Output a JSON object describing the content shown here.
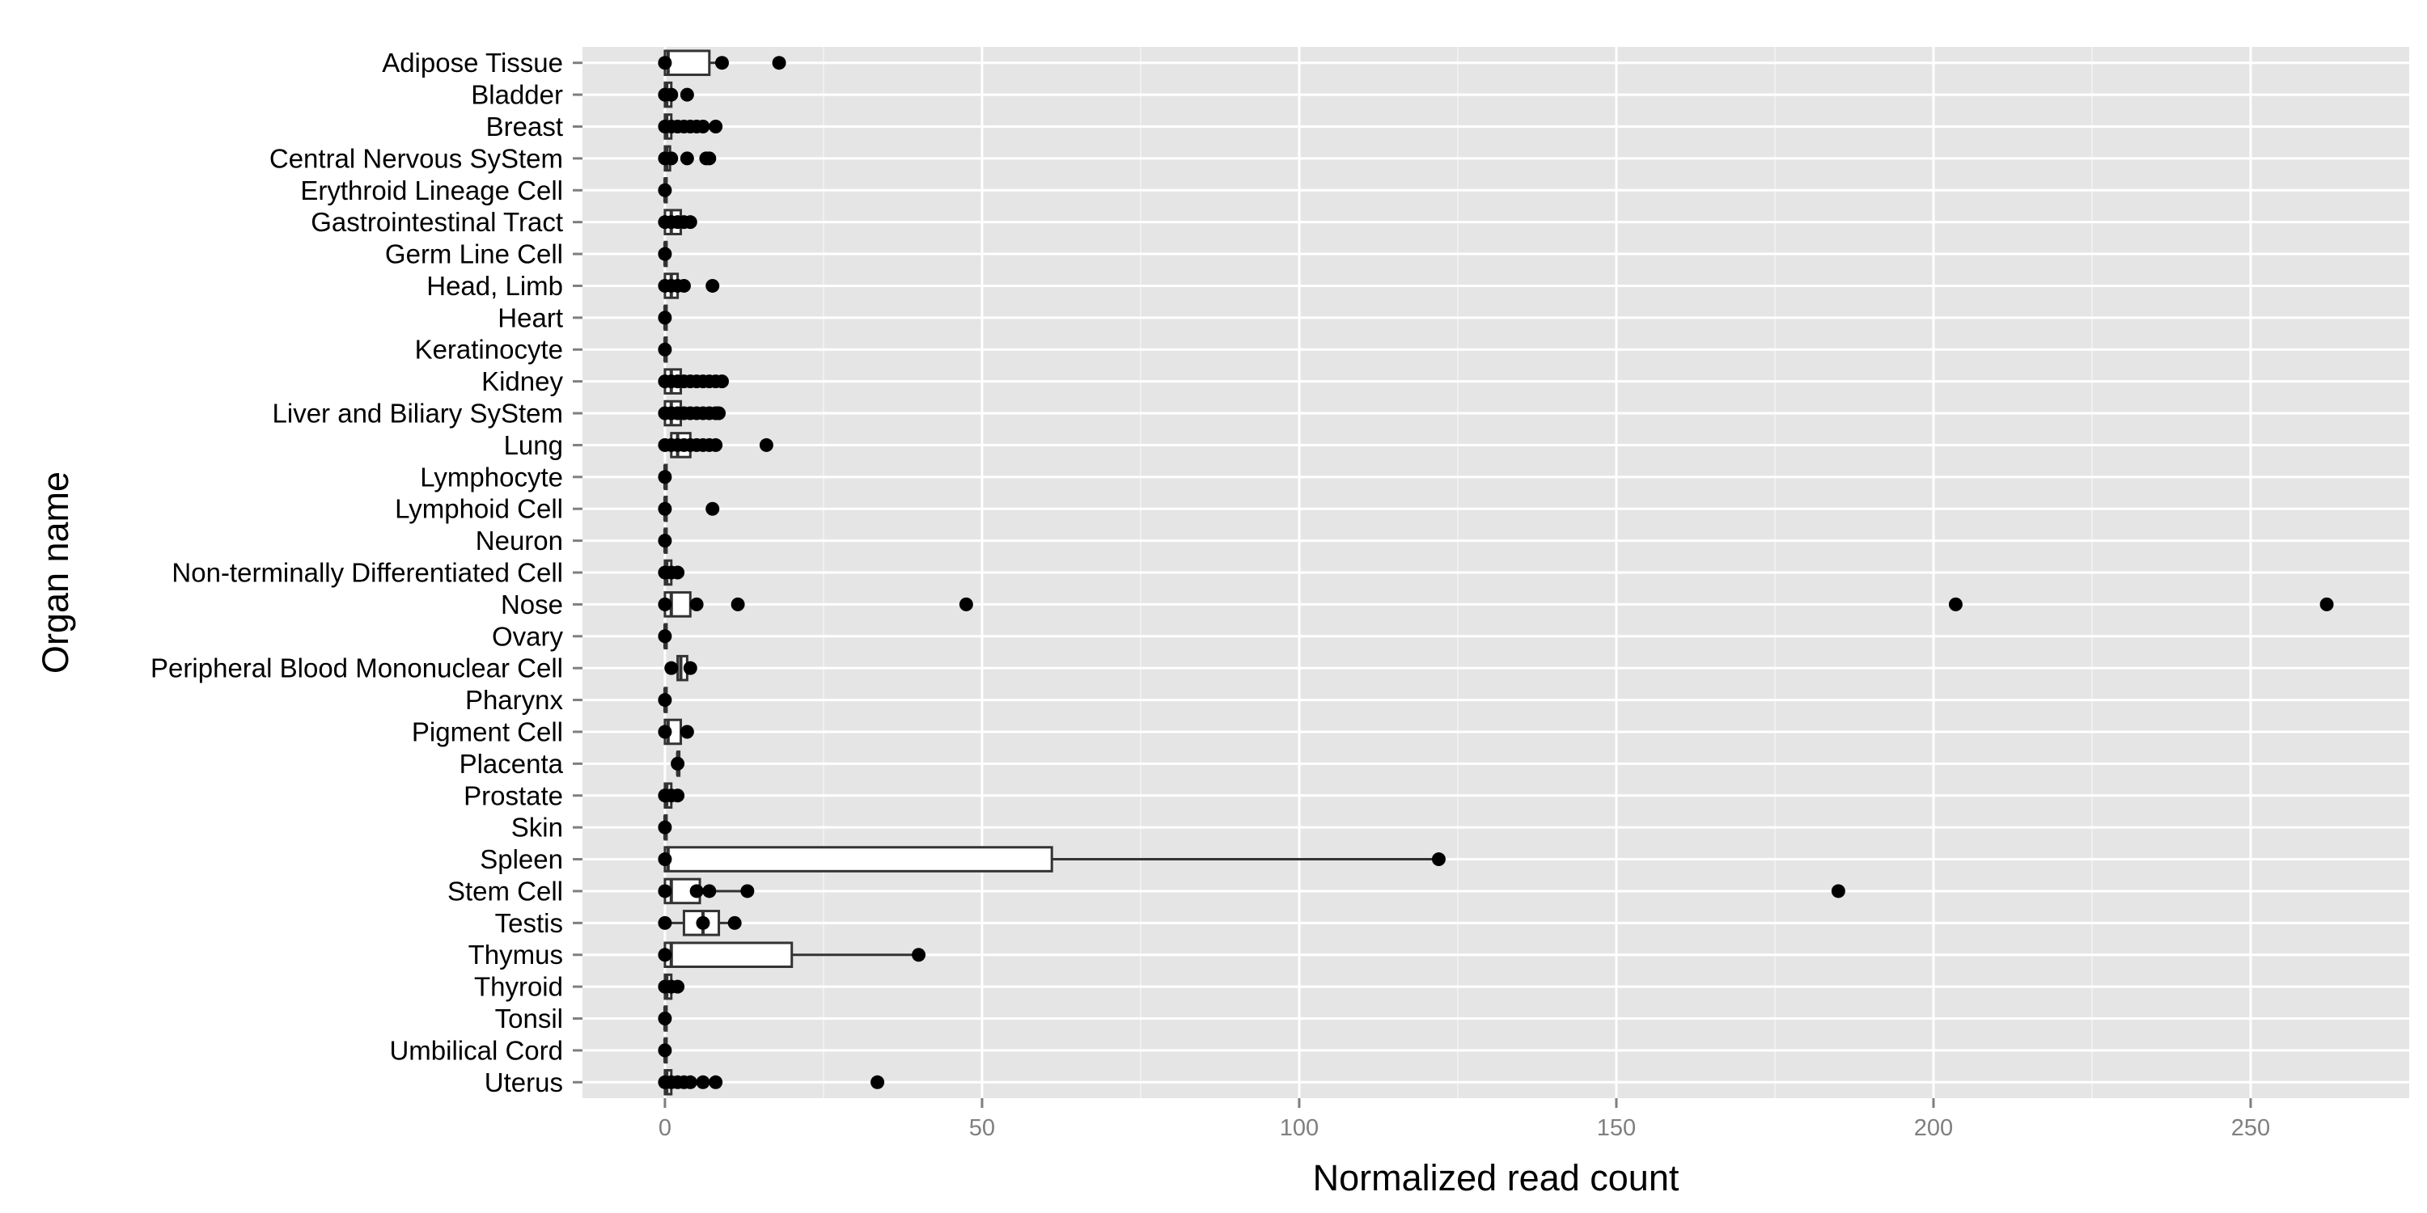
{
  "chart_data": {
    "type": "boxplot",
    "orientation": "horizontal",
    "xlabel": "Normalized read count",
    "ylabel": "Organ name",
    "xlim": [
      -13,
      275
    ],
    "xticks": [
      0,
      50,
      100,
      150,
      200,
      250
    ],
    "grid": true,
    "legend": "none",
    "colors": {
      "panel": "#e5e5e5",
      "grid": "#ffffff",
      "box_fill": "#ffffff",
      "stroke": "#333333",
      "point": "#000000",
      "tick_text": "#7f7f7f"
    },
    "categories": [
      {
        "name": "Adipose Tissue",
        "box": [
          0,
          0,
          0.5,
          7,
          9
        ],
        "outliers": [
          0,
          9,
          18
        ]
      },
      {
        "name": "Bladder",
        "box": [
          0,
          0,
          0.3,
          1,
          1.5
        ],
        "outliers": [
          0,
          1,
          3.5
        ]
      },
      {
        "name": "Breast",
        "box": [
          0,
          0,
          0.3,
          1,
          2
        ],
        "outliers": [
          0,
          1,
          2,
          3,
          4,
          5,
          6,
          8
        ]
      },
      {
        "name": "Central Nervous SyStem",
        "box": [
          0,
          0,
          0.3,
          0.8,
          1.5
        ],
        "outliers": [
          0,
          1,
          3.5,
          6.5,
          7
        ]
      },
      {
        "name": "Erythroid Lineage Cell",
        "box": [
          0,
          0,
          0,
          0,
          0
        ],
        "outliers": [
          0
        ]
      },
      {
        "name": "Gastrointestinal Tract",
        "box": [
          0,
          0,
          1,
          2.5,
          4
        ],
        "outliers": [
          0,
          1,
          2,
          3,
          4
        ]
      },
      {
        "name": "Germ Line Cell",
        "box": [
          0,
          0,
          0,
          0,
          0
        ],
        "outliers": [
          0
        ]
      },
      {
        "name": "Head, Limb",
        "box": [
          0,
          0,
          1,
          2,
          3
        ],
        "outliers": [
          0,
          1,
          2,
          3,
          7.5
        ]
      },
      {
        "name": "Heart",
        "box": [
          0,
          0,
          0,
          0,
          0
        ],
        "outliers": [
          0
        ]
      },
      {
        "name": "Keratinocyte",
        "box": [
          0,
          0,
          0,
          0,
          0
        ],
        "outliers": [
          0
        ]
      },
      {
        "name": "Kidney",
        "box": [
          0,
          0,
          1,
          2.5,
          3.5
        ],
        "outliers": [
          0,
          1,
          2,
          3,
          4,
          5,
          6,
          7,
          8,
          9
        ]
      },
      {
        "name": "Liver and Biliary SyStem",
        "box": [
          0,
          0,
          1,
          2.5,
          3.5
        ],
        "outliers": [
          0,
          1,
          2,
          3,
          4,
          5,
          6,
          7,
          8,
          8.5
        ]
      },
      {
        "name": "Lung",
        "box": [
          0,
          1,
          2,
          4,
          5
        ],
        "outliers": [
          0,
          1,
          2,
          3,
          4,
          5,
          6,
          7,
          8,
          16
        ]
      },
      {
        "name": "Lymphocyte",
        "box": [
          0,
          0,
          0,
          0,
          0
        ],
        "outliers": [
          0
        ]
      },
      {
        "name": "Lymphoid Cell",
        "box": [
          0,
          0,
          0,
          0,
          0
        ],
        "outliers": [
          0,
          7.5
        ]
      },
      {
        "name": "Neuron",
        "box": [
          0,
          0,
          0,
          0,
          0
        ],
        "outliers": [
          0
        ]
      },
      {
        "name": "Non-terminally Differentiated Cell",
        "box": [
          0,
          0,
          0.3,
          1,
          1.5
        ],
        "outliers": [
          0,
          1,
          2
        ]
      },
      {
        "name": "Nose",
        "box": [
          0,
          0,
          1,
          4,
          5
        ],
        "outliers": [
          0,
          5,
          11.5,
          47.5,
          203.5,
          262
        ]
      },
      {
        "name": "Ovary",
        "box": [
          0,
          0,
          0,
          0,
          0
        ],
        "outliers": [
          0
        ]
      },
      {
        "name": "Peripheral Blood Mononuclear Cell",
        "box": [
          1,
          2,
          2.5,
          3.5,
          4
        ],
        "outliers": [
          1,
          4
        ]
      },
      {
        "name": "Pharynx",
        "box": [
          0,
          0,
          0,
          0,
          0
        ],
        "outliers": [
          0
        ]
      },
      {
        "name": "Pigment Cell",
        "box": [
          0,
          0,
          0.5,
          2.5,
          3
        ],
        "outliers": [
          0,
          3.5
        ]
      },
      {
        "name": "Placenta",
        "box": [
          2,
          2,
          2,
          2,
          2
        ],
        "outliers": [
          2
        ]
      },
      {
        "name": "Prostate",
        "box": [
          0,
          0,
          0.3,
          1,
          2
        ],
        "outliers": [
          0,
          1,
          2
        ]
      },
      {
        "name": "Skin",
        "box": [
          0,
          0,
          0,
          0,
          0
        ],
        "outliers": [
          0
        ]
      },
      {
        "name": "Spleen",
        "box": [
          0,
          0,
          0.5,
          61,
          122
        ],
        " outliers": [],
        "outliers": [
          0,
          122
        ]
      },
      {
        "name": "Stem Cell",
        "box": [
          0,
          0,
          1,
          5.5,
          13
        ],
        "outliers": [
          0,
          5,
          7,
          13,
          185
        ]
      },
      {
        "name": "Testis",
        "box": [
          0,
          3,
          6,
          8.5,
          11
        ],
        "outliers": [
          0,
          6,
          11
        ]
      },
      {
        "name": "Thymus",
        "box": [
          0,
          0,
          1,
          20,
          40
        ],
        "outliers": [
          0,
          40
        ]
      },
      {
        "name": "Thyroid",
        "box": [
          0,
          0,
          0.3,
          1,
          2
        ],
        "outliers": [
          0,
          1,
          2
        ]
      },
      {
        "name": "Tonsil",
        "box": [
          0,
          0,
          0,
          0,
          0
        ],
        "outliers": [
          0
        ]
      },
      {
        "name": "Umbilical Cord",
        "box": [
          0,
          0,
          0,
          0,
          0
        ],
        "outliers": [
          0
        ]
      },
      {
        "name": "Uterus",
        "box": [
          0,
          0,
          0.3,
          1,
          2
        ],
        "outliers": [
          0,
          1,
          2,
          3,
          4,
          6,
          8,
          33.5
        ]
      }
    ]
  }
}
